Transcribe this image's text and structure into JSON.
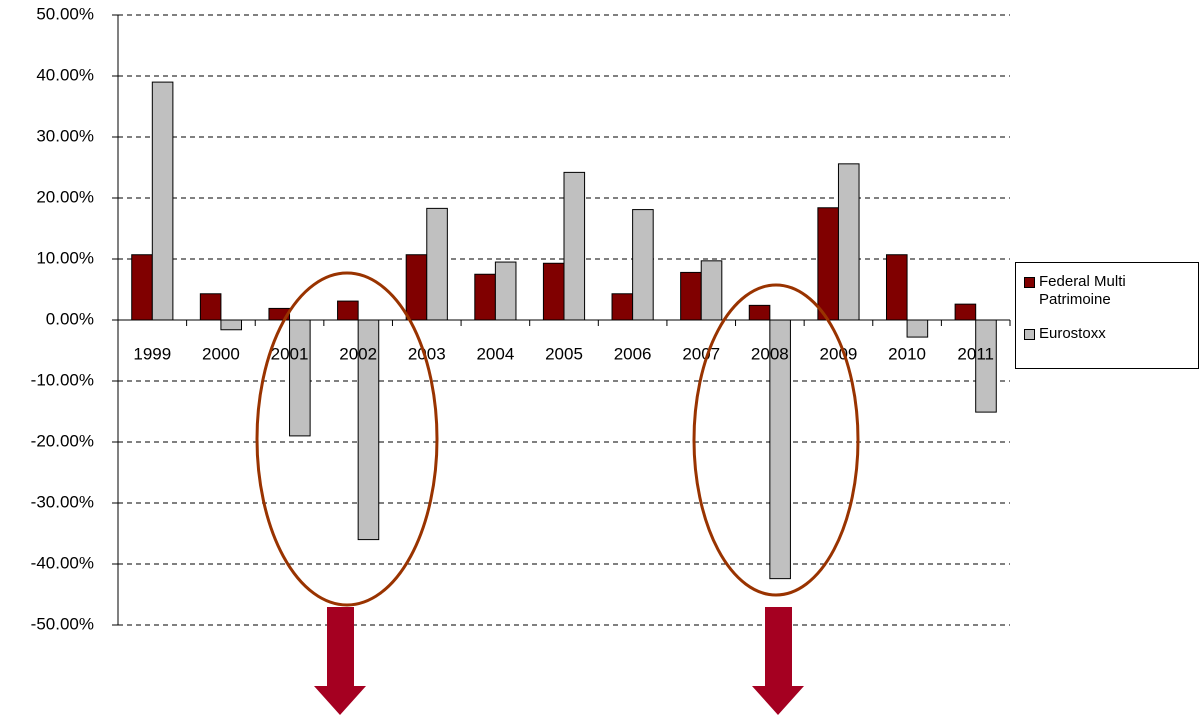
{
  "chart_data": {
    "type": "bar",
    "categories": [
      "1999",
      "2000",
      "2001",
      "2002",
      "2003",
      "2004",
      "2005",
      "2006",
      "2007",
      "2008",
      "2009",
      "2010",
      "2011"
    ],
    "series": [
      {
        "name": "Federal Multi Patrimoine",
        "color": "#800000",
        "values": [
          10.7,
          4.3,
          1.9,
          3.1,
          10.7,
          7.5,
          9.3,
          4.3,
          7.8,
          2.4,
          18.4,
          10.7,
          2.6
        ]
      },
      {
        "name": "Eurostoxx",
        "color": "#c0c0c0",
        "values": [
          39.0,
          -1.6,
          -19.0,
          -36.0,
          18.3,
          9.5,
          24.2,
          18.1,
          9.7,
          -42.4,
          25.6,
          -2.8,
          -15.1
        ]
      }
    ],
    "ylim": [
      -50,
      50
    ],
    "yticks": [
      {
        "value": -50,
        "label": "-50.00%"
      },
      {
        "value": -40,
        "label": "-40.00%"
      },
      {
        "value": -30,
        "label": "-30.00%"
      },
      {
        "value": -20,
        "label": "-20.00%"
      },
      {
        "value": -10,
        "label": "-10.00%"
      },
      {
        "value": 0,
        "label": "0.00%"
      },
      {
        "value": 10,
        "label": "10.00%"
      },
      {
        "value": 20,
        "label": "20.00%"
      },
      {
        "value": 30,
        "label": "30.00%"
      },
      {
        "value": 40,
        "label": "40.00%"
      },
      {
        "value": 50,
        "label": "50.00%"
      }
    ],
    "grid": true,
    "legend": "right"
  }
}
